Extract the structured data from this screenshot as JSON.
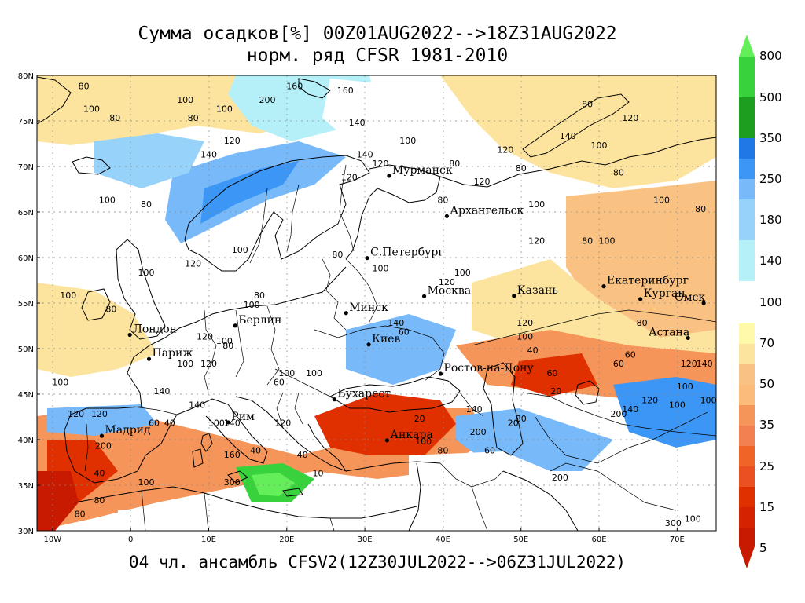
{
  "title": {
    "line1": "Сумма осадков[%] 00Z01AUG2022-->18Z31AUG2022",
    "line2": "норм. ряд CFSR 1981-2010"
  },
  "footer": "04 чл. ансамбль CFSV2(12Z30JUL2022-->06Z31JUL2022)",
  "map": {
    "lat_range": [
      30,
      80
    ],
    "lon_range": [
      -12,
      75
    ],
    "lat_ticks": [
      "30N",
      "35N",
      "40N",
      "45N",
      "50N",
      "55N",
      "60N",
      "65N",
      "70N",
      "75N",
      "80N"
    ],
    "lon_ticks": [
      "10W",
      "0",
      "10E",
      "20E",
      "30E",
      "40E",
      "50E",
      "60E",
      "70E"
    ],
    "cities": [
      {
        "name": "Мурманск",
        "lon": 33.1,
        "lat": 68.97
      },
      {
        "name": "Архангельск",
        "lon": 40.5,
        "lat": 64.54
      },
      {
        "name": "С.Петербург",
        "lon": 30.3,
        "lat": 59.94
      },
      {
        "name": "Москва",
        "lon": 37.6,
        "lat": 55.75
      },
      {
        "name": "Казань",
        "lon": 49.1,
        "lat": 55.79
      },
      {
        "name": "Екатеринбург",
        "lon": 60.6,
        "lat": 56.84
      },
      {
        "name": "Курган",
        "lon": 65.3,
        "lat": 55.44
      },
      {
        "name": "Омск",
        "lon": 73.4,
        "lat": 54.99
      },
      {
        "name": "Астана",
        "lon": 71.4,
        "lat": 51.17
      },
      {
        "name": "Минск",
        "lon": 27.6,
        "lat": 53.9
      },
      {
        "name": "Берлин",
        "lon": 13.4,
        "lat": 52.52
      },
      {
        "name": "Лондон",
        "lon": -0.1,
        "lat": 51.51
      },
      {
        "name": "Париж",
        "lon": 2.35,
        "lat": 48.86
      },
      {
        "name": "Киев",
        "lon": 30.5,
        "lat": 50.45
      },
      {
        "name": "Ростов-на-Дону",
        "lon": 39.7,
        "lat": 47.24
      },
      {
        "name": "Бухарест",
        "lon": 26.1,
        "lat": 44.43
      },
      {
        "name": "Рим",
        "lon": 12.5,
        "lat": 41.9
      },
      {
        "name": "Мадрид",
        "lon": -3.7,
        "lat": 40.42
      },
      {
        "name": "Анкара",
        "lon": 32.85,
        "lat": 39.93
      }
    ],
    "contour_labels": [
      {
        "text": "80",
        "lon": -6,
        "lat": 78.5
      },
      {
        "text": "100",
        "lon": 7,
        "lat": 77
      },
      {
        "text": "200",
        "lon": 17.5,
        "lat": 77
      },
      {
        "text": "160",
        "lon": 21,
        "lat": 78.5
      },
      {
        "text": "160",
        "lon": 27.5,
        "lat": 78
      },
      {
        "text": "100",
        "lon": -5,
        "lat": 76
      },
      {
        "text": "80",
        "lon": -2,
        "lat": 75
      },
      {
        "text": "80",
        "lon": 8,
        "lat": 75
      },
      {
        "text": "100",
        "lon": 12,
        "lat": 76
      },
      {
        "text": "140",
        "lon": 29,
        "lat": 74.5
      },
      {
        "text": "120",
        "lon": 13,
        "lat": 72.5
      },
      {
        "text": "100",
        "lon": 35.5,
        "lat": 72.5
      },
      {
        "text": "140",
        "lon": 30,
        "lat": 71
      },
      {
        "text": "120",
        "lon": 32,
        "lat": 70
      },
      {
        "text": "140",
        "lon": 10,
        "lat": 71
      },
      {
        "text": "120",
        "lon": 48,
        "lat": 71.5
      },
      {
        "text": "80",
        "lon": 58.5,
        "lat": 76.5
      },
      {
        "text": "120",
        "lon": 64,
        "lat": 75
      },
      {
        "text": "140",
        "lon": 56,
        "lat": 73
      },
      {
        "text": "100",
        "lon": 60,
        "lat": 72
      },
      {
        "text": "80",
        "lon": 50,
        "lat": 69.5
      },
      {
        "text": "80",
        "lon": 41.5,
        "lat": 70
      },
      {
        "text": "120",
        "lon": 45,
        "lat": 68
      },
      {
        "text": "80",
        "lon": 40,
        "lat": 66
      },
      {
        "text": "100",
        "lon": 52,
        "lat": 65.5
      },
      {
        "text": "80",
        "lon": 62.5,
        "lat": 69
      },
      {
        "text": "100",
        "lon": 68,
        "lat": 66
      },
      {
        "text": "80",
        "lon": 73,
        "lat": 65
      },
      {
        "text": "100",
        "lon": -3,
        "lat": 66
      },
      {
        "text": "80",
        "lon": 2,
        "lat": 65.5
      },
      {
        "text": "120",
        "lon": 28,
        "lat": 68.5
      },
      {
        "text": "100",
        "lon": 14,
        "lat": 60.5
      },
      {
        "text": "120",
        "lon": 8,
        "lat": 59
      },
      {
        "text": "100",
        "lon": 2,
        "lat": 58
      },
      {
        "text": "80",
        "lon": 26.5,
        "lat": 60
      },
      {
        "text": "120",
        "lon": 52,
        "lat": 61.5
      },
      {
        "text": "80",
        "lon": 58.5,
        "lat": 61.5
      },
      {
        "text": "100",
        "lon": 61,
        "lat": 61.5
      },
      {
        "text": "100",
        "lon": 32,
        "lat": 58.5
      },
      {
        "text": "120",
        "lon": 40.5,
        "lat": 57
      },
      {
        "text": "100",
        "lon": 42.5,
        "lat": 58
      },
      {
        "text": "100",
        "lon": -8,
        "lat": 55.5
      },
      {
        "text": "80",
        "lon": -2.5,
        "lat": 54
      },
      {
        "text": "80",
        "lon": 16.5,
        "lat": 55.5
      },
      {
        "text": "100",
        "lon": 15.5,
        "lat": 54.5
      },
      {
        "text": "140",
        "lon": 34,
        "lat": 52.5
      },
      {
        "text": "60",
        "lon": 35,
        "lat": 51.5
      },
      {
        "text": "100",
        "lon": 12,
        "lat": 50.5
      },
      {
        "text": "120",
        "lon": 9.5,
        "lat": 51
      },
      {
        "text": "80",
        "lon": 12.5,
        "lat": 50
      },
      {
        "text": "120",
        "lon": 50.5,
        "lat": 52.5
      },
      {
        "text": "100",
        "lon": 50.5,
        "lat": 51
      },
      {
        "text": "40",
        "lon": 51.5,
        "lat": 49.5
      },
      {
        "text": "80",
        "lon": 65.5,
        "lat": 52.5
      },
      {
        "text": "60",
        "lon": 64,
        "lat": 49
      },
      {
        "text": "60",
        "lon": 62.5,
        "lat": 48
      },
      {
        "text": "120",
        "lon": 71.5,
        "lat": 48
      },
      {
        "text": "140",
        "lon": 73.5,
        "lat": 48
      },
      {
        "text": "100",
        "lon": 71,
        "lat": 45.5
      },
      {
        "text": "100",
        "lon": 70,
        "lat": 43.5
      },
      {
        "text": "120",
        "lon": 66.5,
        "lat": 44
      },
      {
        "text": "140",
        "lon": 64,
        "lat": 43
      },
      {
        "text": "200",
        "lon": 62.5,
        "lat": 42.5
      },
      {
        "text": "100",
        "lon": 74,
        "lat": 44
      },
      {
        "text": "20",
        "lon": 54.5,
        "lat": 45
      },
      {
        "text": "60",
        "lon": 54,
        "lat": 47
      },
      {
        "text": "100",
        "lon": 20,
        "lat": 47
      },
      {
        "text": "100",
        "lon": 23.5,
        "lat": 47
      },
      {
        "text": "60",
        "lon": 19,
        "lat": 46
      },
      {
        "text": "100",
        "lon": 7,
        "lat": 48
      },
      {
        "text": "120",
        "lon": 10,
        "lat": 48
      },
      {
        "text": "100",
        "lon": -9,
        "lat": 46
      },
      {
        "text": "140",
        "lon": 4,
        "lat": 45
      },
      {
        "text": "120",
        "lon": -7,
        "lat": 42.5
      },
      {
        "text": "120",
        "lon": -4,
        "lat": 42.5
      },
      {
        "text": "200",
        "lon": -3.5,
        "lat": 39
      },
      {
        "text": "40",
        "lon": -4,
        "lat": 36
      },
      {
        "text": "80",
        "lon": -4,
        "lat": 33
      },
      {
        "text": "80",
        "lon": -6.5,
        "lat": 31.5
      },
      {
        "text": "100",
        "lon": 2,
        "lat": 35
      },
      {
        "text": "60",
        "lon": 3,
        "lat": 41.5
      },
      {
        "text": "40",
        "lon": 5,
        "lat": 41.5
      },
      {
        "text": "140",
        "lon": 8.5,
        "lat": 43.5
      },
      {
        "text": "100",
        "lon": 11,
        "lat": 41.5
      },
      {
        "text": "140",
        "lon": 13,
        "lat": 41.5
      },
      {
        "text": "160",
        "lon": 13,
        "lat": 38
      },
      {
        "text": "300",
        "lon": 13,
        "lat": 35
      },
      {
        "text": "40",
        "lon": 16,
        "lat": 38.5
      },
      {
        "text": "40",
        "lon": 22,
        "lat": 38
      },
      {
        "text": "120",
        "lon": 19.5,
        "lat": 41.5
      },
      {
        "text": "10",
        "lon": 24,
        "lat": 36
      },
      {
        "text": "20",
        "lon": 37,
        "lat": 42
      },
      {
        "text": "100",
        "lon": 37.5,
        "lat": 39.5
      },
      {
        "text": "80",
        "lon": 40,
        "lat": 38.5
      },
      {
        "text": "200",
        "lon": 44.5,
        "lat": 40.5
      },
      {
        "text": "140",
        "lon": 44,
        "lat": 43
      },
      {
        "text": "80",
        "lon": 50,
        "lat": 42
      },
      {
        "text": "20",
        "lon": 49,
        "lat": 41.5
      },
      {
        "text": "200",
        "lon": 55,
        "lat": 35.5
      },
      {
        "text": "60",
        "lon": 46,
        "lat": 38.5
      },
      {
        "text": "300",
        "lon": 69.5,
        "lat": 30.5
      },
      {
        "text": "100",
        "lon": 72,
        "lat": 31
      }
    ],
    "colors": {
      "c5": "#c81a00",
      "c15": "#e03000",
      "c25": "#f06428",
      "c35": "#f5955a",
      "c50": "#f9c283",
      "c70": "#fde49e",
      "c80": "#fffaaa",
      "c100": "#ffffff",
      "c140": "#b5f0f9",
      "c180": "#96d2fa",
      "c250": "#78b9fa",
      "c350": "#3c96f5",
      "c500": "#1f78e6",
      "c800": "#1e9e1e",
      "g2": "#37d23c",
      "g3": "#64ef5a"
    }
  },
  "colorbar": {
    "labels": [
      "800",
      "500",
      "350",
      "250",
      "180",
      "140",
      "100",
      "70",
      "50",
      "35",
      "25",
      "15",
      "5"
    ]
  }
}
